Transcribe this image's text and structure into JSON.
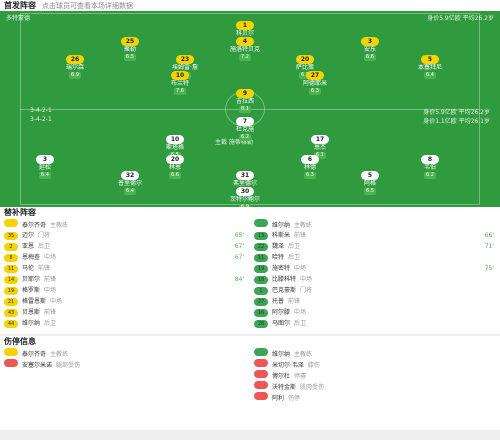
{
  "header": {
    "title": "首发阵容",
    "subtitle": "点击球员可查看本场详细数据"
  },
  "home": {
    "name": "多特蒙德",
    "formation": "3-4-2-1",
    "info": "身价5.9亿欧 平均26.2岁",
    "players": [
      {
        "number": 1,
        "name": "科贝尔",
        "rating": 6.8
      },
      {
        "number": 25,
        "name": "聚勒",
        "rating": 6.5
      },
      {
        "number": 4,
        "name": "施洛特贝克",
        "rating": 7.2
      },
      {
        "number": 3,
        "name": "安东",
        "rating": 6.6
      },
      {
        "number": 26,
        "name": "瑞尔森",
        "rating": 6.9
      },
      {
        "number": 23,
        "name": "埃姆雷·詹",
        "rating": 7.1
      },
      {
        "number": 20,
        "name": "萨比策",
        "rating": 6.7
      },
      {
        "number": 5,
        "name": "本塞拜尼",
        "rating": 6.4
      },
      {
        "number": 10,
        "name": "布兰特",
        "rating": 7.6
      },
      {
        "number": 27,
        "name": "阿德耶米",
        "rating": 6.3
      },
      {
        "number": 9,
        "name": "吉拉西",
        "rating": 8.1
      }
    ]
  },
  "away": {
    "name": "云达不莱梅",
    "formation": "3-4-2-1",
    "info": "身价1.1亿欧 平均26.1岁",
    "players": [
      {
        "number": 7,
        "name": "杜克施",
        "rating": 6.2
      },
      {
        "number": 10,
        "name": "斯塔格",
        "rating": 6.5
      },
      {
        "number": 17,
        "name": "恩杰",
        "rating": 6.1
      },
      {
        "number": 3,
        "name": "延松",
        "rating": 6.4
      },
      {
        "number": 20,
        "name": "林恩",
        "rating": 6.6
      },
      {
        "number": 6,
        "name": "林德",
        "rating": 6.3
      },
      {
        "number": 8,
        "name": "韦伯",
        "rating": 6.2
      },
      {
        "number": 32,
        "name": "普里德尔",
        "rating": 6.4
      },
      {
        "number": 31,
        "name": "弗里德尔",
        "rating": 6.8
      },
      {
        "number": 5,
        "name": "阿格",
        "rating": 6.5
      },
      {
        "number": 30,
        "name": "茨特尔鲍尔",
        "rating": 6.9
      }
    ]
  },
  "referee": "主裁 施蒂格勒",
  "subs": {
    "title": "替补阵容",
    "home": {
      "coach": {
        "name": "泰尔齐奇",
        "role": "主教练"
      },
      "players": [
        {
          "number": 35,
          "name": "迈尔",
          "position": "门将",
          "time": "65'"
        },
        {
          "number": 2,
          "name": "亚恩",
          "position": "后卫",
          "time": "67'"
        },
        {
          "number": 8,
          "name": "恩梅查",
          "position": "中场",
          "time": "67'"
        },
        {
          "number": 11,
          "name": "马伦",
          "position": "前锋"
        },
        {
          "number": 14,
          "name": "贝耶尔",
          "position": "前锋",
          "time": "84'"
        },
        {
          "number": 19,
          "name": "格罗斯",
          "position": "中场"
        },
        {
          "number": 21,
          "name": "格雷恩斯",
          "position": "中场"
        },
        {
          "number": 43,
          "name": "贝恩斯",
          "position": "前锋"
        },
        {
          "number": 44,
          "name": "维尔纳",
          "position": "后卫"
        }
      ]
    },
    "away": {
      "coach": {
        "name": "维尔纳",
        "role": "主教练"
      },
      "players": [
        {
          "number": 13,
          "name": "科斯米",
          "position": "前锋",
          "time": "66'"
        },
        {
          "number": 22,
          "name": "魏泽",
          "position": "后卫",
          "time": "71'"
        },
        {
          "number": 11,
          "name": "哈特",
          "position": "后卫"
        },
        {
          "number": 19,
          "name": "施密特",
          "position": "中场",
          "time": "75'"
        },
        {
          "number": 18,
          "name": "比滕科特",
          "position": "中场"
        },
        {
          "number": 1,
          "name": "巴克豪斯",
          "position": "门将"
        },
        {
          "number": 27,
          "name": "托普",
          "position": "前锋"
        },
        {
          "number": 16,
          "name": "阿尔滕",
          "position": "中场"
        },
        {
          "number": 28,
          "name": "马图尔",
          "position": "后卫"
        }
      ]
    }
  },
  "injuries": {
    "title": "伤停信息",
    "home": {
      "coach": {
        "name": "泰尔齐奇",
        "role": "主教练"
      },
      "players": [
        {
          "name": "安塞尔米诺",
          "status": "腿部受伤"
        }
      ]
    },
    "away": {
      "coach": {
        "name": "维尔纳",
        "role": "主教练"
      },
      "players": [
        {
          "name": "米切尔·韦泽",
          "status": "膝伤"
        },
        {
          "name": "博尔杜",
          "status": "停赛"
        },
        {
          "name": "沃特金斯",
          "status": "肌肉受伤"
        },
        {
          "name": "阿利",
          "status": "伤停"
        }
      ]
    }
  }
}
